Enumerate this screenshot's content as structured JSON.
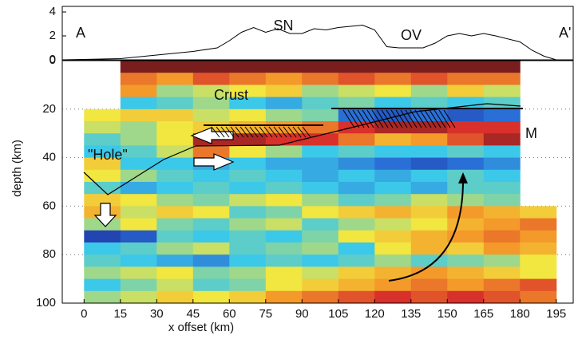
{
  "chart_data": [
    {
      "type": "line",
      "ylim": [
        0,
        4
      ],
      "yticks": [
        0,
        2,
        4
      ],
      "xlim": [
        -9,
        202
      ],
      "color": "#000000",
      "x": [
        -9,
        15,
        30,
        45,
        55,
        60,
        65,
        70,
        75,
        80,
        85,
        90,
        95,
        100,
        105,
        110,
        115,
        120,
        125,
        130,
        140,
        145,
        150,
        155,
        160,
        165,
        170,
        180,
        185,
        190,
        195,
        202
      ],
      "values": [
        0,
        0.1,
        0.4,
        0.7,
        1.0,
        1.6,
        2.3,
        2.7,
        2.3,
        2.6,
        2.2,
        2.2,
        2.6,
        2.5,
        2.7,
        2.8,
        2.9,
        2.5,
        1.1,
        1.0,
        1.0,
        1.4,
        2.0,
        2.2,
        2.0,
        2.2,
        2.0,
        1.5,
        0.8,
        0.3,
        0,
        0
      ],
      "annotations": [
        "A",
        "SN",
        "OV",
        "A'"
      ]
    },
    {
      "type": "heatmap",
      "xlabel": "x offset (km)",
      "ylabel": "depth (km)",
      "xlim": [
        -9,
        202
      ],
      "ylim": [
        100,
        0
      ],
      "xticks": [
        0,
        15,
        30,
        45,
        60,
        75,
        90,
        105,
        120,
        135,
        150,
        165,
        180,
        195
      ],
      "yticks": [
        0,
        20,
        40,
        60,
        80,
        100
      ],
      "grid": true,
      "annotations": [
        "Crust",
        "\"Hole\"",
        "M"
      ],
      "image": {
        "x": [
          7.5,
          22.5,
          37.5,
          52.5,
          67.5,
          82.5,
          97.5,
          112.5,
          127.5,
          142.5,
          157.5,
          172.5,
          187.5
        ],
        "depth": [
          2.5,
          7.5,
          12.5,
          17.5,
          22.5,
          27.5,
          32.5,
          37.5,
          42.5,
          47.5,
          52.5,
          57.5,
          62.5,
          67.5,
          72.5,
          77.5,
          82.5,
          87.5,
          92.5,
          97.5
        ],
        "z": [
          [
            null,
            1,
            1,
            1,
            1,
            1,
            1,
            1,
            1,
            1,
            1,
            1,
            null
          ],
          [
            null,
            0.6,
            0.5,
            0.7,
            0.6,
            0.5,
            0.6,
            0.7,
            0.6,
            0.7,
            0.6,
            0.6,
            null
          ],
          [
            null,
            0.5,
            0,
            0.1,
            0.2,
            0.3,
            0,
            0.1,
            0.2,
            0,
            0.3,
            0.1,
            null
          ],
          [
            null,
            -0.3,
            -0.2,
            0,
            -0.3,
            -0.4,
            -0.2,
            -0.1,
            -0.3,
            -0.2,
            -0.3,
            -0.2,
            null
          ],
          [
            0.2,
            0.3,
            0.3,
            0.1,
            0.2,
            0,
            -0.1,
            -0.6,
            -0.7,
            -0.6,
            -0.7,
            -0.6,
            null
          ],
          [
            0.1,
            0,
            0.2,
            0.3,
            0.4,
            0.5,
            0.6,
            0.8,
            0.9,
            0.9,
            0.8,
            0.8,
            null
          ],
          [
            -0.2,
            0,
            0.2,
            0.9,
            0.9,
            0.8,
            0.8,
            0.6,
            0.4,
            0.5,
            0.7,
            0.9,
            null
          ],
          [
            -0.3,
            -0.2,
            0.1,
            0.6,
            0.2,
            0,
            -0.3,
            -0.2,
            -0.3,
            -0.3,
            -0.2,
            -0.3,
            null
          ],
          [
            0.3,
            -0.3,
            -0.3,
            -0.4,
            -0.3,
            -0.4,
            -0.4,
            -0.5,
            -0.6,
            -0.7,
            -0.6,
            -0.5,
            null
          ],
          [
            0.2,
            0,
            -0.2,
            -0.3,
            -0.2,
            -0.3,
            -0.4,
            -0.3,
            -0.4,
            -0.3,
            -0.2,
            -0.3,
            null
          ],
          [
            -0.2,
            -0.4,
            -0.3,
            -0.2,
            -0.3,
            -0.2,
            -0.3,
            -0.4,
            -0.3,
            -0.4,
            -0.2,
            -0.2,
            null
          ],
          [
            0.3,
            0.2,
            0,
            -0.1,
            0.1,
            0.2,
            0,
            -0.2,
            -0.1,
            0.1,
            0,
            -0.1,
            null
          ],
          [
            0.4,
            0.1,
            0.3,
            0.2,
            -0.2,
            -0.1,
            0.2,
            0.3,
            0.4,
            0.3,
            0.5,
            0.4,
            0.3
          ],
          [
            0,
            0.2,
            -0.1,
            -0.2,
            0,
            0.1,
            -0.2,
            0,
            0.1,
            0.2,
            0.4,
            0.5,
            0.6
          ],
          [
            -0.8,
            -0.7,
            -0.2,
            -0.3,
            -0.2,
            -0.3,
            -0.1,
            0.2,
            0.3,
            0.4,
            0.5,
            0.6,
            0.5
          ],
          [
            -0.3,
            -0.2,
            0,
            0.1,
            -0.2,
            -0.1,
            0,
            -0.3,
            0.2,
            0.4,
            0.3,
            0.5,
            0.4
          ],
          [
            -0.2,
            -0.3,
            -0.4,
            -0.5,
            -0.3,
            -0.2,
            -0.3,
            -0.2,
            0,
            -0.2,
            -0.1,
            0,
            0.2
          ],
          [
            0,
            0.1,
            0.2,
            -0.1,
            0,
            0.2,
            0.1,
            0.3,
            0.4,
            0.5,
            0.4,
            0.3,
            0.2
          ],
          [
            -0.3,
            -0.1,
            0.1,
            -0.2,
            -0.1,
            0.2,
            0.3,
            0.4,
            0.5,
            0.6,
            0.5,
            0.6,
            0.7
          ],
          [
            0,
            0.1,
            0.3,
            0.2,
            0.3,
            0.5,
            0.6,
            0.7,
            0.8,
            0.7,
            0.8,
            0.7,
            0.6
          ]
        ]
      }
    }
  ]
}
